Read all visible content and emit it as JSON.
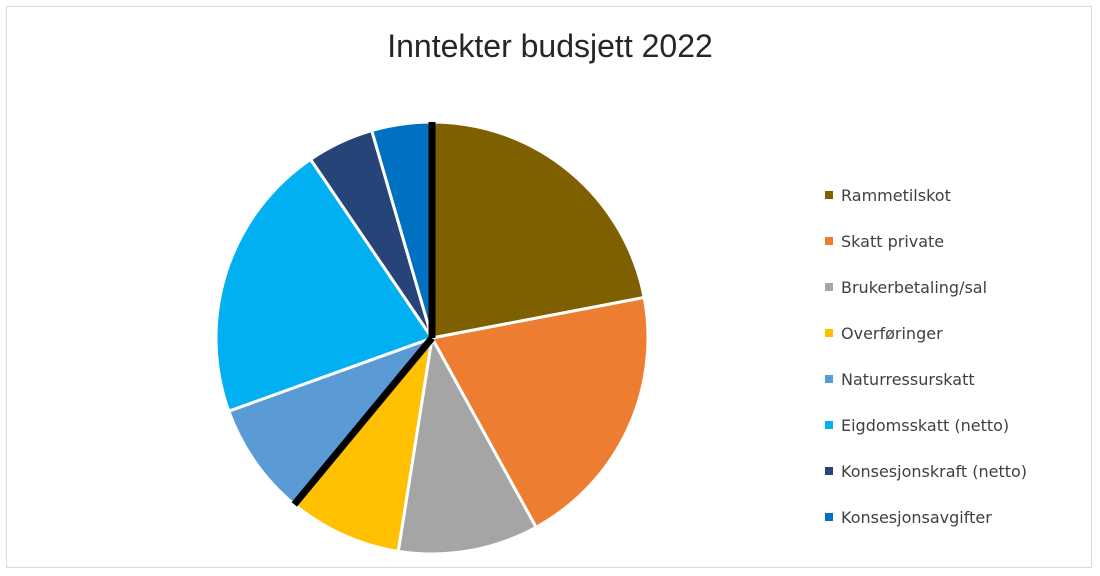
{
  "chart_data": {
    "type": "pie",
    "title": "Inntekter budsjett 2022",
    "start_angle_deg": 0,
    "direction": "clockwise",
    "legend_position": "right",
    "slices": [
      {
        "name": "Rammetilskot",
        "value": 22.0,
        "color": "#7f6000"
      },
      {
        "name": "Skatt private",
        "value": 20.0,
        "color": "#ed7d31"
      },
      {
        "name": "Brukerbetaling/sal",
        "value": 10.5,
        "color": "#a5a5a5"
      },
      {
        "name": "Overføringer",
        "value": 8.5,
        "color": "#ffc000"
      },
      {
        "name": "Naturressurskatt",
        "value": 8.5,
        "color": "#5b9bd5"
      },
      {
        "name": "Eigdomsskatt (netto)",
        "value": 21.0,
        "color": "#00b0f0"
      },
      {
        "name": "Konsesjonskraft (netto)",
        "value": 5.0,
        "color": "#264478"
      },
      {
        "name": "Konsesjonsavgifter",
        "value": 4.5,
        "color": "#0070c0"
      }
    ],
    "highlight_lines": [
      {
        "direction": "from centre along the start of the first slice",
        "color": "#000000"
      },
      {
        "direction": "from centre along the boundary between Overføringer and Naturressurskatt",
        "color": "#000000"
      }
    ]
  }
}
